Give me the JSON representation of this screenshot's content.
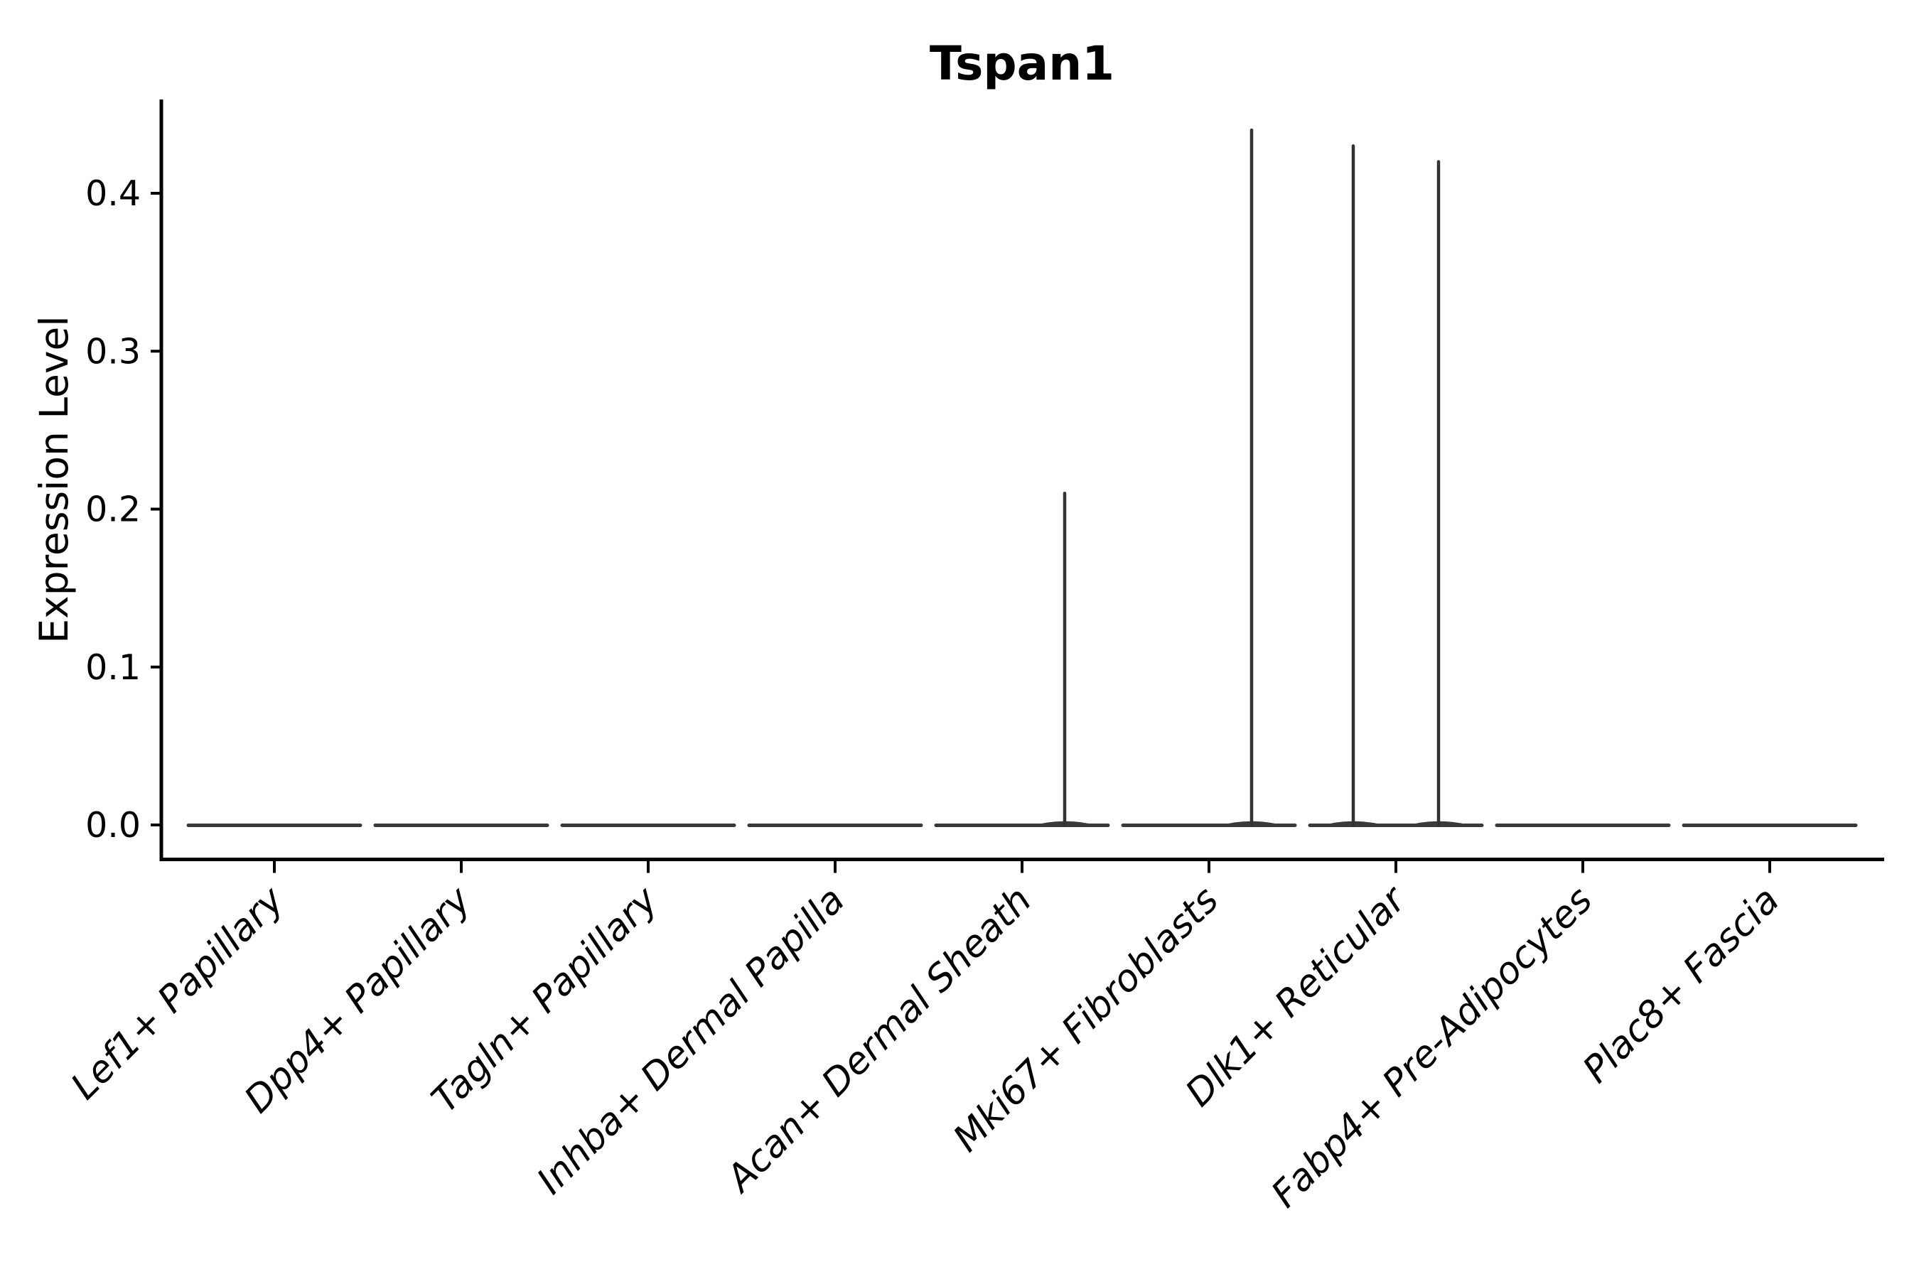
{
  "chart_data": {
    "type": "violin",
    "title": "Tspan1",
    "xlabel": "",
    "ylabel": "Expression Level",
    "yticks": [
      0.0,
      0.1,
      0.2,
      0.3,
      0.4
    ],
    "ytick_labels": [
      "0.0",
      "0.1",
      "0.2",
      "0.3",
      "0.4"
    ],
    "ylim": [
      -0.022,
      0.459
    ],
    "grid": false,
    "legend": "none",
    "categories": [
      "Lef1+ Papillary",
      "Dpp4+ Papillary",
      "Tagln+ Papillary",
      "Inhba+ Dermal Papilla",
      "Acan+ Dermal Sheath",
      "Mki67+ Fibroblasts",
      "Dlk1+ Reticular",
      "Fabp4+ Pre-Adipocytes",
      "Plac8+ Fascia"
    ],
    "violins": [
      {
        "label": "Lef1+ Papillary",
        "baseline_value": 0.0,
        "max_value": 0.0,
        "spikes": []
      },
      {
        "label": "Dpp4+ Papillary",
        "baseline_value": 0.0,
        "max_value": 0.0,
        "spikes": []
      },
      {
        "label": "Tagln+ Papillary",
        "baseline_value": 0.0,
        "max_value": 0.0,
        "spikes": []
      },
      {
        "label": "Inhba+ Dermal Papilla",
        "baseline_value": 0.0,
        "max_value": 0.0,
        "spikes": []
      },
      {
        "label": "Acan+ Dermal Sheath",
        "baseline_value": 0.0,
        "max_value": 0.21,
        "spikes": [
          {
            "side": "right",
            "peak": 0.21
          }
        ]
      },
      {
        "label": "Mki67+ Fibroblasts",
        "baseline_value": 0.0,
        "max_value": 0.44,
        "spikes": [
          {
            "side": "right",
            "peak": 0.44
          }
        ]
      },
      {
        "label": "Dlk1+ Reticular",
        "baseline_value": 0.0,
        "max_value": 0.43,
        "spikes": [
          {
            "side": "left",
            "peak": 0.43
          },
          {
            "side": "right",
            "peak": 0.42
          }
        ]
      },
      {
        "label": "Fabp4+ Pre-Adipocytes",
        "baseline_value": 0.0,
        "max_value": 0.0,
        "spikes": []
      },
      {
        "label": "Plac8+ Fascia",
        "baseline_value": 0.0,
        "max_value": 0.0,
        "spikes": []
      }
    ],
    "colors": {
      "violin": "#3a3a3a",
      "spike": "#333333",
      "axis": "#000000",
      "text": "#000000",
      "background": "#ffffff"
    }
  }
}
